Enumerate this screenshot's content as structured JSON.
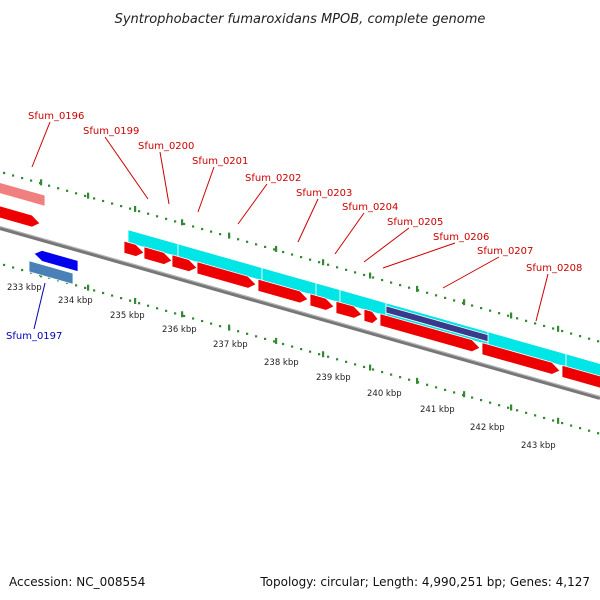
{
  "title": "Syntrophobacter fumaroxidans MPOB, complete genome",
  "footer": {
    "accession": "Accession: NC_008554",
    "summary": "Topology: circular; Length: 4,990,251 bp; Genes: 4,127"
  },
  "colors": {
    "forward_cds": "#ee0000",
    "reverse_cds": "#0000ee",
    "forward_gene": "#00e5e5",
    "reverse_gene": "#4a80b8",
    "pseudo_gene": "#3a3a8a",
    "forward_faded_gene": "#f08080",
    "backbone": "#888888",
    "gc_dots": "#338833",
    "forward_label": "#cc0000",
    "reverse_label": "#0000bb"
  },
  "forward_labels": [
    "Sfum_0196",
    "Sfum_0199",
    "Sfum_0200",
    "Sfum_0201",
    "Sfum_0202",
    "Sfum_0203",
    "Sfum_0204",
    "Sfum_0205",
    "Sfum_0206",
    "Sfum_0207",
    "Sfum_0208"
  ],
  "reverse_labels": [
    "Sfum_0197"
  ],
  "ticks": [
    "233 kbp",
    "234 kbp",
    "235 kbp",
    "236 kbp",
    "237 kbp",
    "238 kbp",
    "239 kbp",
    "240 kbp",
    "241 kbp",
    "242 kbp",
    "243 kbp"
  ]
}
